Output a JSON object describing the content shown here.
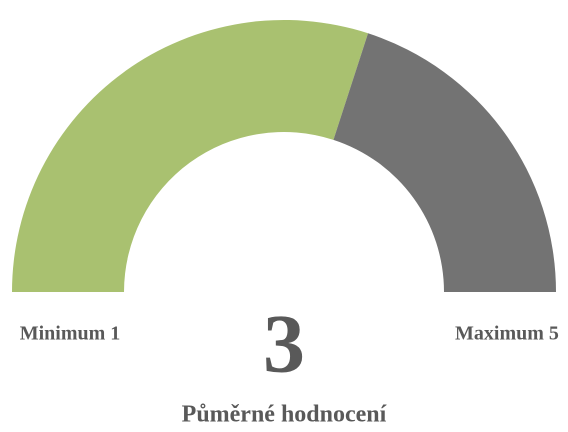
{
  "chart_data": {
    "type": "gauge",
    "title": "Půměrné hodnocení",
    "value": 3,
    "value_label": "3",
    "min_label": "Minimum 1",
    "max_label": "Maximum 5",
    "ylim": [
      0,
      5
    ],
    "color": "#a9c170",
    "rest_color": "#737373"
  }
}
